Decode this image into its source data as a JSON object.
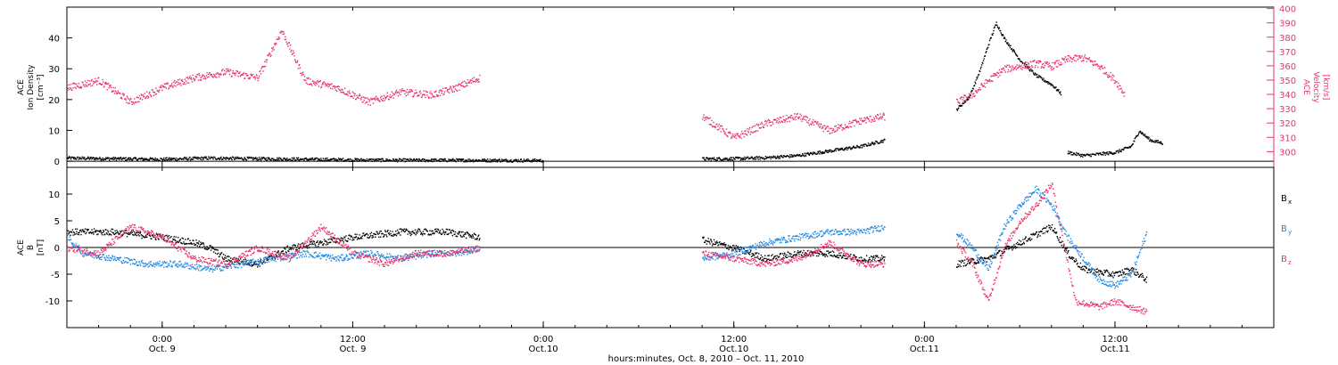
{
  "chart_data": {
    "type": "scatter",
    "time_unit": "hours after 2010-10-08 18:00 UT",
    "x_range": [
      0,
      76
    ],
    "x_ticks": [
      {
        "x": 6,
        "label": "0:00",
        "sub": "Oct. 9"
      },
      {
        "x": 18,
        "label": "12:00",
        "sub": "Oct. 9"
      },
      {
        "x": 30,
        "label": "0:00",
        "sub": "Oct.10"
      },
      {
        "x": 42,
        "label": "12:00",
        "sub": "Oct.10"
      },
      {
        "x": 54,
        "label": "0:00",
        "sub": "Oct.11"
      },
      {
        "x": 66,
        "label": "12:00",
        "sub": "Oct.11"
      }
    ],
    "xlabel": "hours:minutes, Oct.  8, 2010 – Oct. 11, 2010",
    "panels": [
      {
        "id": "plasma",
        "ylabel": [
          "ACE",
          "Ion Density",
          "[cm⁻³]"
        ],
        "ylim": [
          -2,
          50
        ],
        "yticks": [
          0,
          10,
          20,
          30,
          40
        ],
        "ylabel_right": [
          "ACE",
          "Velocity",
          "[km/s]"
        ],
        "ylim_right": [
          289,
          401
        ],
        "yticks_right": [
          300,
          310,
          320,
          330,
          340,
          350,
          360,
          370,
          380,
          390,
          400
        ],
        "right_color": "#e8336a",
        "series": [
          {
            "key": "density",
            "axis": "left",
            "color": "#000000",
            "jitter": 0.5,
            "segments": [
              [
                [
                  0,
                  1.2
                ],
                [
                  3,
                  1.0
                ],
                [
                  6,
                  0.8
                ],
                [
                  9,
                  1.2
                ],
                [
                  12,
                  1.0
                ],
                [
                  15,
                  0.8
                ],
                [
                  18,
                  0.6
                ],
                [
                  21,
                  0.5
                ],
                [
                  24,
                  0.5
                ],
                [
                  30,
                  0.4
                ]
              ],
              [
                [
                  40,
                  0.9
                ],
                [
                  42,
                  1.0
                ],
                [
                  44,
                  1.3
                ],
                [
                  46,
                  2.0
                ],
                [
                  48,
                  3.5
                ],
                [
                  50,
                  5.0
                ],
                [
                  51.5,
                  7.0
                ]
              ],
              [
                [
                  56,
                  17
                ],
                [
                  56.8,
                  21
                ],
                [
                  57.5,
                  30
                ],
                [
                  58,
                  38
                ],
                [
                  58.5,
                  45
                ],
                [
                  59,
                  40
                ],
                [
                  60,
                  33
                ],
                [
                  61,
                  28
                ],
                [
                  62,
                  25
                ],
                [
                  62.6,
                  22
                ]
              ],
              [
                [
                  63,
                  3
                ],
                [
                  64,
                  2
                ],
                [
                  65,
                  2.5
                ],
                [
                  66,
                  3
                ],
                [
                  67,
                  5
                ],
                [
                  67.5,
                  10
                ],
                [
                  68.2,
                  7
                ],
                [
                  69,
                  6
                ]
              ]
            ]
          },
          {
            "key": "velocity",
            "axis": "right",
            "color": "#e8336a",
            "jitter": 2.5,
            "segments": [
              [
                [
                  0,
                  345
                ],
                [
                  2,
                  350
                ],
                [
                  4,
                  335
                ],
                [
                  6,
                  345
                ],
                [
                  8,
                  352
                ],
                [
                  10,
                  356
                ],
                [
                  12,
                  352
                ],
                [
                  13.5,
                  385
                ],
                [
                  15,
                  350
                ],
                [
                  17,
                  345
                ],
                [
                  19,
                  335
                ],
                [
                  21,
                  342
                ],
                [
                  23,
                  340
                ],
                [
                  24.5,
                  345
                ],
                [
                  26,
                  352
                ]
              ],
              [
                [
                  40,
                  325
                ],
                [
                  42,
                  310
                ],
                [
                  44,
                  320
                ],
                [
                  46,
                  325
                ],
                [
                  48,
                  315
                ],
                [
                  50,
                  322
                ],
                [
                  51.5,
                  325
                ]
              ],
              [
                [
                  56,
                  335
                ],
                [
                  57,
                  340
                ],
                [
                  58,
                  350
                ],
                [
                  59,
                  358
                ],
                [
                  60,
                  360
                ],
                [
                  61,
                  362
                ],
                [
                  62,
                  360
                ],
                [
                  63,
                  365
                ],
                [
                  64,
                  366
                ],
                [
                  65,
                  360
                ],
                [
                  66,
                  350
                ],
                [
                  66.6,
                  340
                ]
              ]
            ]
          }
        ]
      },
      {
        "id": "magnetic",
        "ylabel": [
          "ACE",
          "B",
          "[nT]"
        ],
        "ylim": [
          -15,
          15
        ],
        "yticks": [
          -10,
          -5,
          0,
          5,
          10
        ],
        "legend": [
          {
            "text": "B",
            "sub": "x",
            "color": "#000000"
          },
          {
            "text": "B",
            "sub": "y",
            "color": "#1e88e5"
          },
          {
            "text": "B",
            "sub": "z",
            "color": "#e8336a"
          }
        ],
        "series": [
          {
            "key": "bx",
            "color": "#000000",
            "jitter": 0.6,
            "segments": [
              [
                [
                  0,
                  3
                ],
                [
                  3,
                  3
                ],
                [
                  6,
                  2
                ],
                [
                  8,
                  1
                ],
                [
                  9,
                  0
                ],
                [
                  10,
                  -2
                ],
                [
                  12,
                  -3
                ],
                [
                  14,
                  0
                ],
                [
                  16,
                  1
                ],
                [
                  18,
                  2
                ],
                [
                  21,
                  3
                ],
                [
                  24,
                  3
                ],
                [
                  26,
                  2
                ]
              ],
              [
                [
                  40,
                  1.5
                ],
                [
                  42,
                  0
                ],
                [
                  44,
                  -2
                ],
                [
                  46,
                  -1
                ],
                [
                  48,
                  -1
                ],
                [
                  50,
                  -2
                ],
                [
                  51.5,
                  -2
                ]
              ],
              [
                [
                  56,
                  -3
                ],
                [
                  58,
                  -2
                ],
                [
                  60,
                  1
                ],
                [
                  62,
                  4
                ],
                [
                  63,
                  -1
                ],
                [
                  64,
                  -4
                ],
                [
                  66,
                  -5
                ],
                [
                  67,
                  -4
                ],
                [
                  68,
                  -6
                ]
              ]
            ]
          },
          {
            "key": "by",
            "color": "#1e88e5",
            "jitter": 0.6,
            "segments": [
              [
                [
                  0,
                  2
                ],
                [
                  1,
                  -1
                ],
                [
                  3,
                  -2
                ],
                [
                  5,
                  -3
                ],
                [
                  7,
                  -3
                ],
                [
                  9,
                  -4
                ],
                [
                  11,
                  -3
                ],
                [
                  13,
                  -2
                ],
                [
                  15,
                  -1
                ],
                [
                  17,
                  -2
                ],
                [
                  19,
                  -1
                ],
                [
                  21,
                  -2
                ],
                [
                  23,
                  -1
                ],
                [
                  24.5,
                  -1
                ],
                [
                  26,
                  0
                ]
              ],
              [
                [
                  40,
                  -2
                ],
                [
                  42,
                  -1
                ],
                [
                  44,
                  1
                ],
                [
                  46,
                  2
                ],
                [
                  48,
                  3
                ],
                [
                  50,
                  3
                ],
                [
                  51.5,
                  4
                ]
              ],
              [
                [
                  56,
                  3
                ],
                [
                  57,
                  0
                ],
                [
                  58,
                  -4
                ],
                [
                  59,
                  4
                ],
                [
                  60,
                  8
                ],
                [
                  61,
                  11
                ],
                [
                  62,
                  8
                ],
                [
                  63,
                  2
                ],
                [
                  64,
                  -2
                ],
                [
                  65,
                  -6
                ],
                [
                  66,
                  -7
                ],
                [
                  67,
                  -5
                ],
                [
                  68,
                  3
                ]
              ]
            ]
          },
          {
            "key": "bz",
            "color": "#e8336a",
            "jitter": 0.6,
            "segments": [
              [
                [
                  0,
                  0
                ],
                [
                  2,
                  -1
                ],
                [
                  4,
                  4
                ],
                [
                  6,
                  2
                ],
                [
                  8,
                  -2
                ],
                [
                  10,
                  -3
                ],
                [
                  12,
                  0
                ],
                [
                  14,
                  -2
                ],
                [
                  16,
                  4
                ],
                [
                  18,
                  -1
                ],
                [
                  20,
                  -3
                ],
                [
                  22,
                  -1
                ],
                [
                  24,
                  -1
                ],
                [
                  26,
                  0
                ]
              ],
              [
                [
                  40,
                  -1
                ],
                [
                  42,
                  -2
                ],
                [
                  44,
                  -3
                ],
                [
                  46,
                  -2
                ],
                [
                  48,
                  1
                ],
                [
                  50,
                  -3
                ],
                [
                  51.5,
                  -3
                ]
              ],
              [
                [
                  56,
                  1
                ],
                [
                  57,
                  -3
                ],
                [
                  58,
                  -10
                ],
                [
                  59,
                  0
                ],
                [
                  60,
                  5
                ],
                [
                  61,
                  8
                ],
                [
                  62,
                  12
                ],
                [
                  62.8,
                  0
                ],
                [
                  63.5,
                  -10
                ],
                [
                  65,
                  -11
                ],
                [
                  66,
                  -10
                ],
                [
                  67,
                  -11
                ],
                [
                  68,
                  -12
                ]
              ]
            ]
          }
        ]
      }
    ]
  }
}
